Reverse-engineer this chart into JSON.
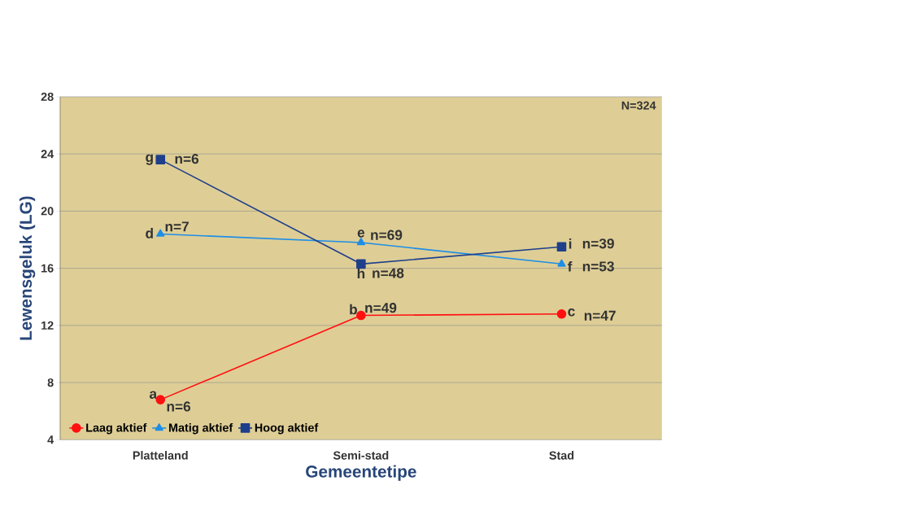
{
  "chart_data": {
    "type": "line",
    "xlabel": "Gemeentetipe",
    "ylabel": "Lewensgeluk (LG)",
    "categories": [
      "Platteland",
      "Semi-stad",
      "Stad"
    ],
    "series": [
      {
        "name": "Laag aktief",
        "color": "#ff1010",
        "marker": "circle",
        "values": [
          6.8,
          12.7,
          12.8
        ]
      },
      {
        "name": "Matig aktief",
        "color": "#1e8ee6",
        "marker": "triangle",
        "values": [
          18.4,
          17.8,
          16.3
        ]
      },
      {
        "name": "Hoog aktief",
        "color": "#1f3f8a",
        "marker": "square",
        "values": [
          23.6,
          16.3,
          17.5
        ]
      }
    ],
    "ylim": [
      4,
      28
    ],
    "yticks": [
      4,
      8,
      12,
      16,
      20,
      24,
      28
    ],
    "grid": "y",
    "legend": "bottom left",
    "annotations": [
      "N=324",
      {
        "text": "a",
        "x": "Platteland",
        "y": 6.8
      },
      {
        "text": "n=6",
        "x": "Platteland",
        "y": 6.8
      },
      {
        "text": "b",
        "x": "Semi-stad",
        "y": 12.7
      },
      {
        "text": "n=49",
        "x": "Semi-stad",
        "y": 12.7
      },
      {
        "text": "c",
        "x": "Stad",
        "y": 12.8
      },
      {
        "text": "n=47",
        "x": "Stad",
        "y": 12.8
      },
      {
        "text": "d",
        "x": "Platteland",
        "y": 18.4
      },
      {
        "text": "n=7",
        "x": "Platteland",
        "y": 18.4
      },
      {
        "text": "e",
        "x": "Semi-stad",
        "y": 17.8
      },
      {
        "text": "n=69",
        "x": "Semi-stad",
        "y": 17.8
      },
      {
        "text": "f",
        "x": "Stad",
        "y": 16.3
      },
      {
        "text": "n=53",
        "x": "Stad",
        "y": 16.3
      },
      {
        "text": "g",
        "x": "Platteland",
        "y": 23.6
      },
      {
        "text": "n=6",
        "x": "Platteland",
        "y": 23.6
      },
      {
        "text": "h",
        "x": "Semi-stad",
        "y": 16.3
      },
      {
        "text": "n=48",
        "x": "Semi-stad",
        "y": 16.3
      },
      {
        "text": "i",
        "x": "Stad",
        "y": 17.5
      },
      {
        "text": "n=39",
        "x": "Stad",
        "y": 17.5
      }
    ]
  }
}
